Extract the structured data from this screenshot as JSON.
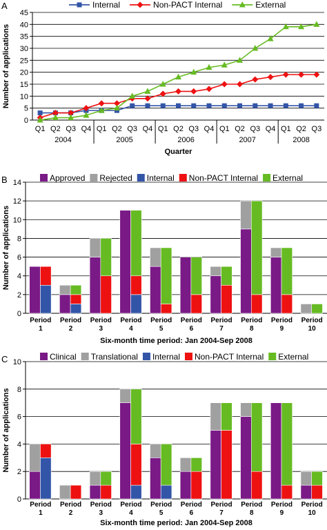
{
  "colors": {
    "internal": "#3355a8",
    "nonpact": "#ee1111",
    "external": "#66bb22",
    "purple": "#7a1a86",
    "gray": "#a0a0a0",
    "grid": "#000000"
  },
  "chart_data": [
    {
      "panel": "A",
      "type": "line",
      "ylabel": "Number of applications",
      "xlabel": "Quarter",
      "ylim": [
        0,
        45
      ],
      "yticks": [
        0,
        5,
        10,
        15,
        20,
        25,
        30,
        35,
        40,
        45
      ],
      "grid": true,
      "legend_position": "top",
      "categories": [
        "Q1",
        "Q2",
        "Q3",
        "Q4",
        "Q1",
        "Q2",
        "Q3",
        "Q4",
        "Q1",
        "Q2",
        "Q3",
        "Q4",
        "Q1",
        "Q2",
        "Q3",
        "Q4",
        "Q1",
        "Q2",
        "Q3"
      ],
      "years": [
        {
          "label": "2004",
          "start": 0,
          "end": 3
        },
        {
          "label": "2005",
          "start": 4,
          "end": 7
        },
        {
          "label": "2006",
          "start": 8,
          "end": 11
        },
        {
          "label": "2007",
          "start": 12,
          "end": 15
        },
        {
          "label": "2008",
          "start": 16,
          "end": 18
        }
      ],
      "series": [
        {
          "name": "Internal",
          "color": "#3355a8",
          "marker": "square",
          "values": [
            3,
            3,
            3,
            4,
            4,
            4,
            6,
            6,
            6,
            6,
            6,
            6,
            6,
            6,
            6,
            6,
            6,
            6,
            6
          ]
        },
        {
          "name": "Non-PACT Internal",
          "color": "#ee1111",
          "marker": "diamond",
          "values": [
            1,
            3,
            3,
            5,
            7,
            7,
            9,
            9,
            11,
            12,
            12,
            13,
            15,
            15,
            17,
            18,
            19,
            19,
            19
          ]
        },
        {
          "name": "External",
          "color": "#66bb22",
          "marker": "triangle",
          "values": [
            0,
            1,
            1,
            2,
            4,
            5,
            10,
            12,
            15,
            18,
            20,
            22,
            23,
            25,
            30,
            34,
            39,
            39,
            40
          ]
        }
      ]
    },
    {
      "panel": "B",
      "type": "bar",
      "ylabel": "Number of applications",
      "xlabel": "Six-month time period: Jan 2004-Sep 2008",
      "ylim": [
        0,
        14
      ],
      "yticks": [
        0,
        2,
        4,
        6,
        8,
        10,
        12,
        14
      ],
      "grid": true,
      "legend_position": "top",
      "categories": [
        "Period 1",
        "Period 2",
        "Period 3",
        "Period 4",
        "Period 5",
        "Period 6",
        "Period 7",
        "Period 8",
        "Period 9",
        "Period 10"
      ],
      "stacks": [
        {
          "series": [
            {
              "name": "Approved",
              "color": "#7a1a86",
              "values": [
                5,
                2,
                6,
                11,
                5,
                6,
                4,
                9,
                6,
                0
              ]
            },
            {
              "name": "Rejected",
              "color": "#a0a0a0",
              "values": [
                0,
                1,
                2,
                0,
                2,
                0,
                1,
                3,
                1,
                1
              ]
            }
          ]
        },
        {
          "series": [
            {
              "name": "Internal",
              "color": "#3355a8",
              "values": [
                3,
                1,
                0,
                2,
                0,
                0,
                0,
                0,
                0,
                0
              ]
            },
            {
              "name": "Non-PACT Internal",
              "color": "#ee1111",
              "values": [
                2,
                1,
                4,
                2,
                1,
                2,
                3,
                2,
                2,
                0
              ]
            },
            {
              "name": "External",
              "color": "#66bb22",
              "values": [
                0,
                1,
                4,
                7,
                6,
                4,
                2,
                10,
                5,
                1
              ]
            }
          ]
        }
      ]
    },
    {
      "panel": "C",
      "type": "bar",
      "ylabel": "Number of applications",
      "xlabel": "Six-month time period: Jan 2004-Sep 2008",
      "ylim": [
        0,
        10
      ],
      "yticks": [
        0,
        2,
        4,
        6,
        8,
        10
      ],
      "grid": true,
      "legend_position": "top",
      "categories": [
        "Period 1",
        "Period 2",
        "Period 3",
        "Period 4",
        "Period 5",
        "Period 6",
        "Period 7",
        "Period 8",
        "Period 9",
        "Period 10"
      ],
      "stacks": [
        {
          "series": [
            {
              "name": "Clinical",
              "color": "#7a1a86",
              "values": [
                2,
                0,
                1,
                7,
                3,
                2,
                5,
                6,
                7,
                1
              ]
            },
            {
              "name": "Translational",
              "color": "#a0a0a0",
              "values": [
                2,
                1,
                1,
                1,
                1,
                1,
                2,
                1,
                0,
                1
              ]
            }
          ]
        },
        {
          "series": [
            {
              "name": "Internal",
              "color": "#3355a8",
              "values": [
                3,
                0,
                0,
                1,
                1,
                0,
                0,
                0,
                0,
                0
              ]
            },
            {
              "name": "Non-PACT Internal",
              "color": "#ee1111",
              "values": [
                1,
                1,
                1,
                3,
                0,
                2,
                5,
                2,
                1,
                1
              ]
            },
            {
              "name": "External",
              "color": "#66bb22",
              "values": [
                0,
                0,
                1,
                4,
                3,
                1,
                2,
                5,
                6,
                1
              ]
            }
          ]
        }
      ]
    }
  ]
}
